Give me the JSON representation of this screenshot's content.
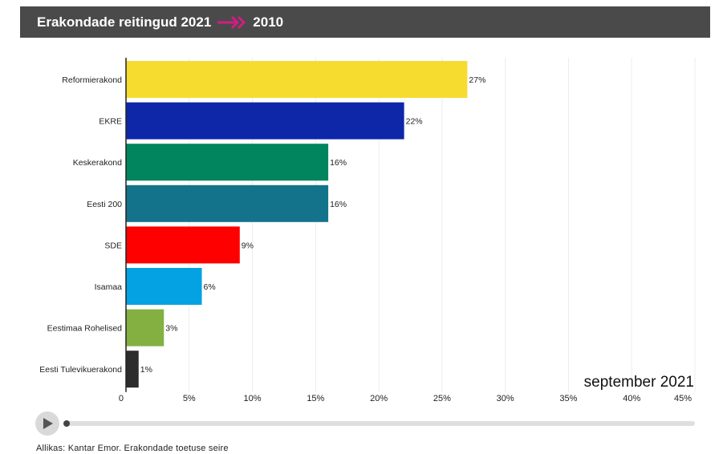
{
  "header": {
    "title": "Erakondade reitingud 2021",
    "year": "2010",
    "arrow_color": "#d11d82",
    "background": "#4a4a4a"
  },
  "period_label": "september 2021",
  "source": "Allikas: Kantar Emor. Erakondade toetuse seire",
  "player": {
    "play_icon": "play-icon",
    "progress": 0
  },
  "chart_data": {
    "type": "bar",
    "orientation": "horizontal",
    "categories": [
      "Reformierakond",
      "EKRE",
      "Keskerakond",
      "Eesti 200",
      "SDE",
      "Isamaa",
      "Eestimaa Rohelised",
      "Eesti Tulevikuerakond"
    ],
    "values": [
      27,
      22,
      16,
      16,
      9,
      6,
      3,
      1
    ],
    "value_labels": [
      "27%",
      "22%",
      "16%",
      "16%",
      "9%",
      "6%",
      "3%",
      "1%"
    ],
    "colors": [
      "#f6dc2f",
      "#0d27a8",
      "#00855e",
      "#13738a",
      "#ff0000",
      "#04a2e2",
      "#84b042",
      "#2c2c2c"
    ],
    "xlim": [
      0,
      45
    ],
    "ticks": [
      0,
      5,
      10,
      15,
      20,
      25,
      30,
      35,
      40,
      45
    ],
    "tick_labels": [
      "0",
      "5%",
      "10%",
      "15%",
      "20%",
      "25%",
      "30%",
      "35%",
      "40%",
      "45%"
    ],
    "grid": true
  }
}
